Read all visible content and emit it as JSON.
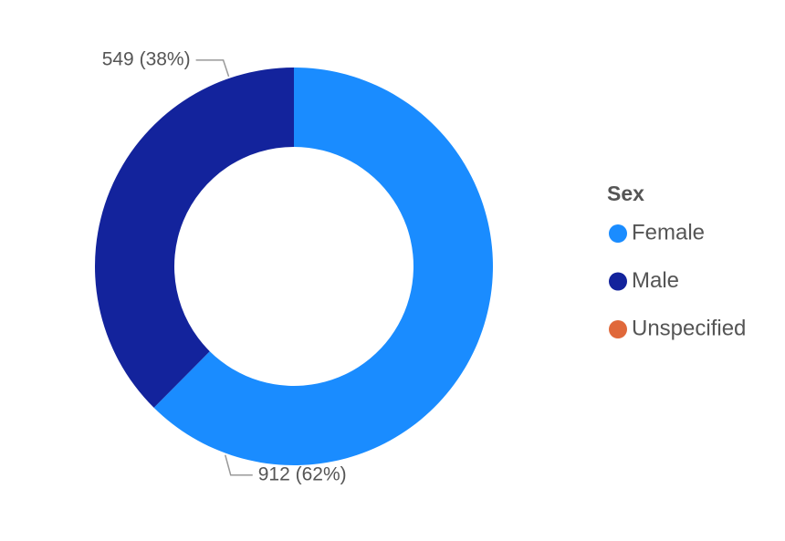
{
  "chart_data": {
    "type": "donut",
    "legend_title": "Sex",
    "categories": [
      "Female",
      "Male",
      "Unspecified"
    ],
    "values": [
      912,
      549,
      0
    ],
    "value_labels": [
      "912 (62%)",
      "549 (38%)",
      null
    ],
    "colors": [
      "#1a8cff",
      "#13239c",
      "#e0683a"
    ],
    "legend": "right"
  }
}
